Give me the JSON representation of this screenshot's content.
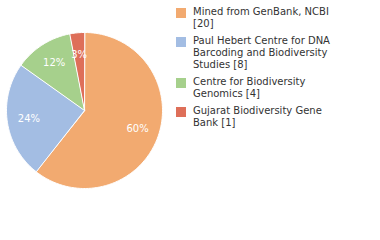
{
  "chart_data": {
    "type": "pie",
    "categories": [
      "Mined from GenBank, NCBI [20]",
      "Paul Hebert Centre for DNA Barcoding and Biodiversity Studies [8]",
      "Centre for Biodiversity Genomics [4]",
      "Gujarat Biodiversity Gene Bank [1]"
    ],
    "values": [
      60,
      24,
      12,
      3
    ],
    "value_labels": [
      "60%",
      "24%",
      "12%",
      "3%"
    ],
    "colors": [
      "#f2aa70",
      "#a3bde3",
      "#a6d08c",
      "#de6f59"
    ],
    "data_labels": true,
    "legend": "right"
  }
}
